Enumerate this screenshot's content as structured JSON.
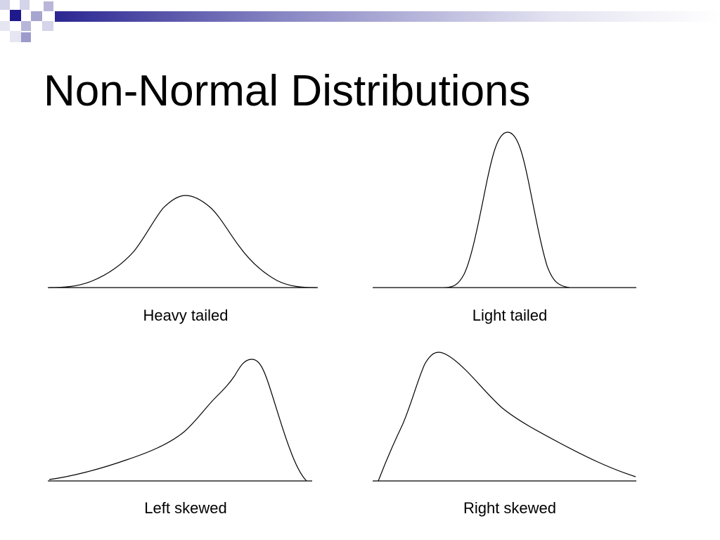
{
  "slide": {
    "title": "Non-Normal Distributions",
    "accent_color": "#1f1a8c",
    "header_gradient_start": "#2b2792",
    "header_gradient_end": "#ffffff"
  },
  "diagram": {
    "panels": [
      {
        "id": "heavy",
        "label": "Heavy tailed",
        "curve": "symmetric-wide"
      },
      {
        "id": "light",
        "label": "Light tailed",
        "curve": "symmetric-narrow"
      },
      {
        "id": "left",
        "label": "Left skewed",
        "curve": "skewed-left"
      },
      {
        "id": "right",
        "label": "Right skewed",
        "curve": "skewed-right"
      }
    ],
    "stroke_color": "#000000"
  }
}
